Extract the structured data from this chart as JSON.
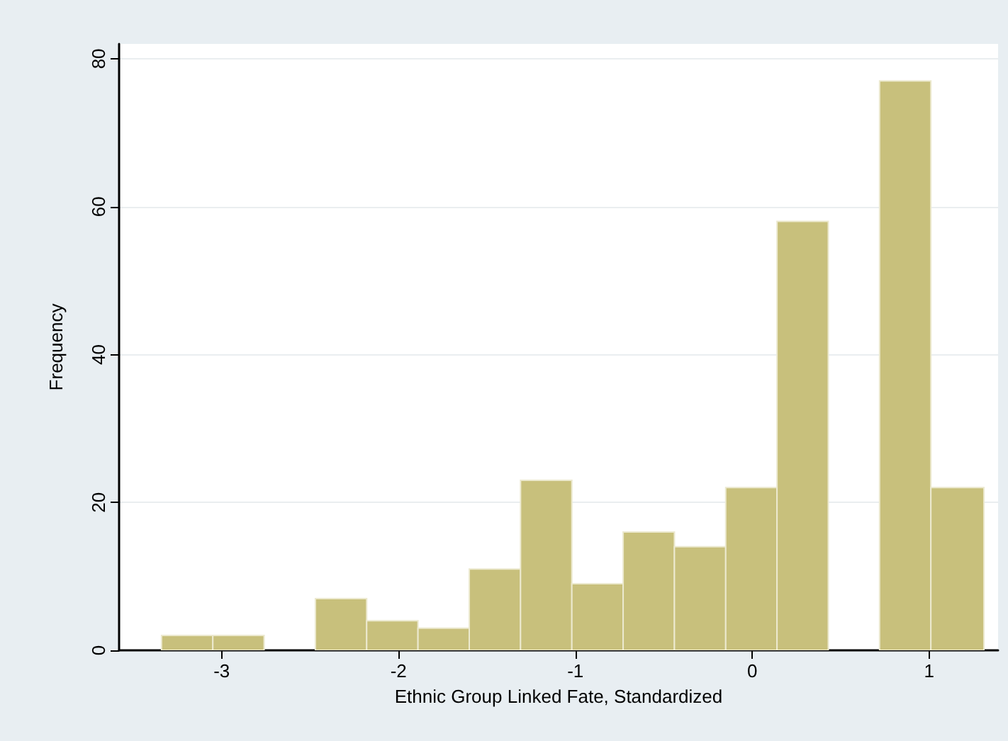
{
  "chart_data": {
    "type": "histogram",
    "xlabel": "Ethnic Group Linked Fate, Standardized",
    "ylabel": "Frequency",
    "bins": [
      -3.34,
      -3.05,
      -2.76,
      -2.47,
      -2.18,
      -1.89,
      -1.6,
      -1.31,
      -1.02,
      -0.73,
      -0.44,
      -0.15,
      0.14,
      0.43,
      0.72,
      1.01,
      1.31
    ],
    "values": [
      2,
      2,
      0,
      7,
      4,
      3,
      11,
      23,
      9,
      16,
      14,
      22,
      58,
      0,
      77,
      22
    ],
    "color": "#c8c07c",
    "xlim": [
      -3.58,
      1.39
    ],
    "xticks": [
      -3,
      -2,
      -1,
      0,
      1
    ],
    "ylim": [
      0,
      82
    ],
    "yticks": [
      0,
      20,
      40,
      60,
      80
    ],
    "grid": "y"
  }
}
